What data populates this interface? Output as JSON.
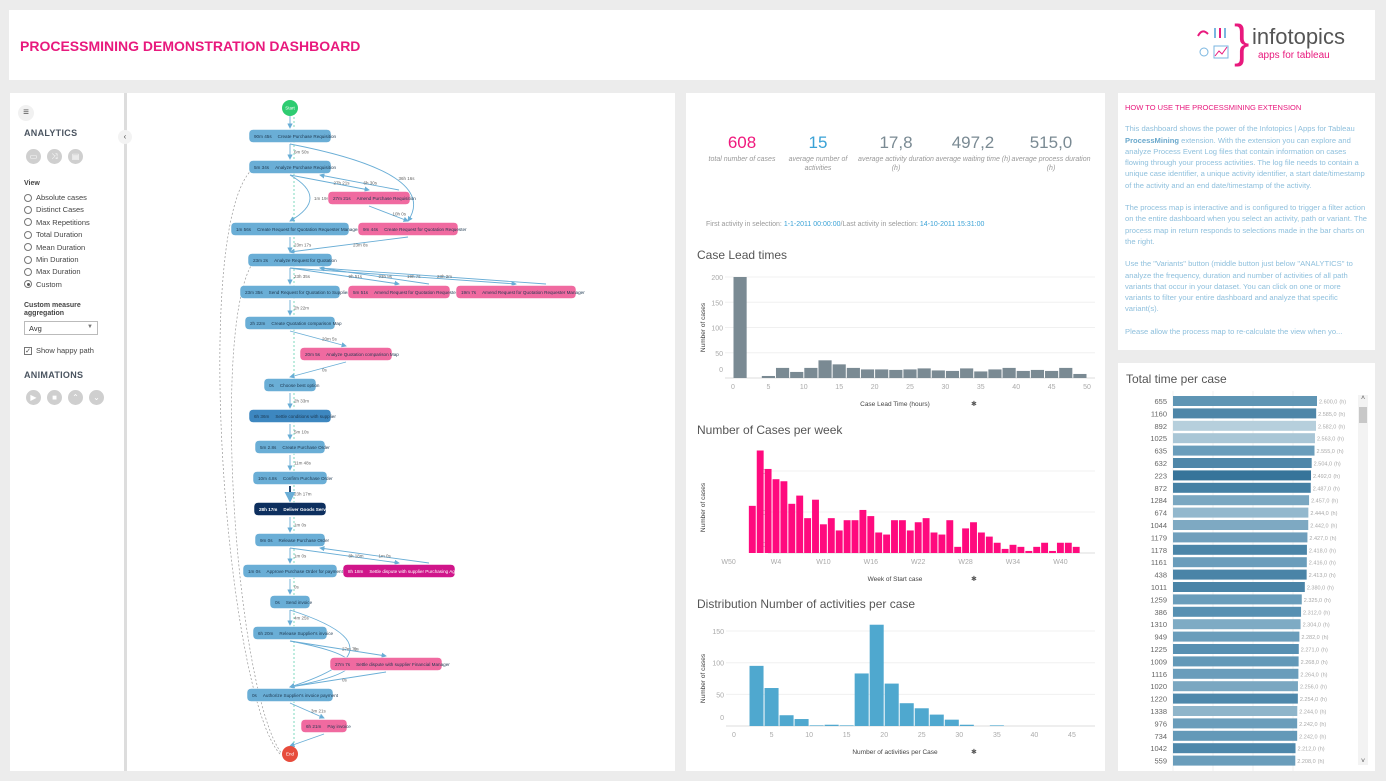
{
  "header": {
    "title": "PROCESSMINING DEMONSTRATION DASHBOARD",
    "logo_brand": "infotopics",
    "logo_sub": "apps for tableau"
  },
  "sidebar": {
    "menu_icon": "hamburger-icon",
    "collapse_icon": "chevron-left-icon",
    "analytics_title": "ANALYTICS",
    "analytics_buttons": [
      {
        "icon": "frequency-icon"
      },
      {
        "icon": "variants-icon"
      },
      {
        "icon": "report-icon"
      }
    ],
    "view_label": "View",
    "view_options": [
      {
        "label": "Absolute cases",
        "selected": false
      },
      {
        "label": "Distinct Cases",
        "selected": false
      },
      {
        "label": "Max Repetitions",
        "selected": false
      },
      {
        "label": "Total Duration",
        "selected": false
      },
      {
        "label": "Mean Duration",
        "selected": false
      },
      {
        "label": "Min Duration",
        "selected": false
      },
      {
        "label": "Max Duration",
        "selected": false
      },
      {
        "label": "Custom",
        "selected": true
      }
    ],
    "aggregation_label": "Custom measure aggregation",
    "aggregation_value": "Avg",
    "happy_path_label": "Show happy path",
    "happy_path_checked": true,
    "animations_title": "ANIMATIONS",
    "animation_buttons": [
      {
        "icon": "play-icon"
      },
      {
        "icon": "stop-icon"
      },
      {
        "icon": "step-up-icon"
      },
      {
        "icon": "step-down-icon"
      }
    ]
  },
  "process_map": {
    "colors": {
      "normal": "#6aaed6",
      "selected": "#3d87c0",
      "highlight": "#0d2f5e",
      "rework": "#f06aa0",
      "dispute": "#d0158a",
      "start": "#2ecc71",
      "end": "#e74c3c"
    },
    "start_label": "Start",
    "end_label": "End",
    "nodes": [
      {
        "duration": "90m 45s",
        "name": "Create Purchase Requisition",
        "type": "normal"
      },
      {
        "duration": "5m 34s",
        "name": "Analyze Purchase Requisition",
        "type": "normal"
      },
      {
        "duration": "27m 21s",
        "name": "Amend Purchase Requisition",
        "type": "rework"
      },
      {
        "duration": "1m 56s",
        "name": "Create Request for Quotation Requester Manager",
        "type": "normal"
      },
      {
        "duration": "9m 44s",
        "name": "Create Request for Quotation Requester",
        "type": "rework"
      },
      {
        "duration": "23m 2s",
        "name": "Analyze Request for Quotation",
        "type": "normal"
      },
      {
        "duration": "23m 35s",
        "name": "Send Request for Quotation to Supplier",
        "type": "normal"
      },
      {
        "duration": "5m 51s",
        "name": "Amend Request for Quotation Requester",
        "type": "rework"
      },
      {
        "duration": "19m 7s",
        "name": "Amend Request for Quotation Requester Manager",
        "type": "rework"
      },
      {
        "duration": "2h 22m",
        "name": "Create Quotation comparison Map",
        "type": "normal"
      },
      {
        "duration": "20m 5s",
        "name": "Analyze Quotation comparison Map",
        "type": "rework"
      },
      {
        "duration": "0s",
        "name": "Choose best option",
        "type": "normal"
      },
      {
        "duration": "6h 36m",
        "name": "Settle conditions with supplier",
        "type": "selected"
      },
      {
        "duration": "5m 2.8s",
        "name": "Create Purchase Order",
        "type": "normal"
      },
      {
        "duration": "10m 4.8s",
        "name": "Confirm Purchase Order",
        "type": "normal"
      },
      {
        "duration": "28h 17m",
        "name": "Deliver Goods Services",
        "type": "highlight"
      },
      {
        "duration": "9m 0s",
        "name": "Release Purchase Order",
        "type": "normal"
      },
      {
        "duration": "1m 0s",
        "name": "Approve Purchase Order for payment",
        "type": "normal"
      },
      {
        "duration": "8h 18m",
        "name": "Settle dispute with supplier Purchasing Agent",
        "type": "dispute"
      },
      {
        "duration": "0s",
        "name": "Send invoice",
        "type": "normal"
      },
      {
        "duration": "6h 20m",
        "name": "Release Supplier's invoice",
        "type": "normal"
      },
      {
        "duration": "27m 7s",
        "name": "Settle dispute with supplier Financial Manager",
        "type": "rework"
      },
      {
        "duration": "0s",
        "name": "Authorize Supplier's invoice payment",
        "type": "normal"
      },
      {
        "duration": "6h 21m",
        "name": "Pay invoice",
        "type": "rework"
      }
    ],
    "edges": [
      {
        "from": "start",
        "to": 0,
        "label": ""
      },
      {
        "from": 0,
        "to": 1,
        "label": "6m 50s"
      },
      {
        "from": 0,
        "to": 4,
        "label": "36h 16s"
      },
      {
        "from": 1,
        "to": 2,
        "label": "27h 21s"
      },
      {
        "from": 2,
        "to": 1,
        "label": "6h 30s"
      },
      {
        "from": 1,
        "to": 3,
        "label": "1m 19s"
      },
      {
        "from": 2,
        "to": 4,
        "label": "10h 0s"
      },
      {
        "from": 3,
        "to": 5,
        "label": "23m 17s"
      },
      {
        "from": 4,
        "to": 5,
        "label": "23m 8s"
      },
      {
        "from": 5,
        "to": 6,
        "label": "23h 35s"
      },
      {
        "from": 5,
        "to": 7,
        "label": "9h 51s"
      },
      {
        "from": 7,
        "to": 5,
        "label": "23h 9s"
      },
      {
        "from": 5,
        "to": 8,
        "label": "19h 7s"
      },
      {
        "from": 8,
        "to": 5,
        "label": "23h 2m"
      },
      {
        "from": 6,
        "to": 9,
        "label": "2h 22m"
      },
      {
        "from": 9,
        "to": 10,
        "label": "20m 5s"
      },
      {
        "from": 10,
        "to": 11,
        "label": "0s"
      },
      {
        "from": 11,
        "to": 12,
        "label": "2h 33m"
      },
      {
        "from": 12,
        "to": 13,
        "label": "5m 10s"
      },
      {
        "from": 13,
        "to": 14,
        "label": "11m 48s"
      },
      {
        "from": 14,
        "to": 15,
        "label": "23h 17m"
      },
      {
        "from": 15,
        "to": 16,
        "label": "1m 0s"
      },
      {
        "from": 16,
        "to": 17,
        "label": "1m 0s"
      },
      {
        "from": 16,
        "to": 18,
        "label": "8h 18m"
      },
      {
        "from": 18,
        "to": 16,
        "label": "1m 0s"
      },
      {
        "from": 17,
        "to": 19,
        "label": "0s"
      },
      {
        "from": 19,
        "to": 20,
        "label": "4m 25s"
      },
      {
        "from": 19,
        "to": 22,
        "label": "0s"
      },
      {
        "from": 20,
        "to": 21,
        "label": "27m 7s"
      },
      {
        "from": 20,
        "to": 22,
        "label": "0s"
      },
      {
        "from": 21,
        "to": 22,
        "label": "0s"
      },
      {
        "from": 22,
        "to": 23,
        "label": "3m 21s"
      },
      {
        "from": 23,
        "to": "end",
        "label": ""
      }
    ]
  },
  "kpis": [
    {
      "value": "608",
      "label": "total number of cases",
      "color": "#f0197d"
    },
    {
      "value": "15",
      "label": "average number of activities",
      "color": "#3aa2d6"
    },
    {
      "value": "17,8",
      "label": "average activity duration (h)",
      "color": "#7a8a93"
    },
    {
      "value": "497,2",
      "label": "average waiting time (h)",
      "color": "#7a8a93"
    },
    {
      "value": "515,0",
      "label": "average process duration (h)",
      "color": "#7a8a93"
    }
  ],
  "selection": {
    "first_label": "First activity in selection:",
    "first_value": "1-1-2011 00:00:00",
    "separator": "/",
    "last_label": "Last activity in selection:",
    "last_value": "14-10-2011 15:31:00"
  },
  "chart_data": [
    {
      "type": "bar",
      "title": "Case Lead times",
      "xlabel": "Case Lead Time (hours)",
      "ylabel": "Number of cases",
      "color": "#7a8a93",
      "bin_width": 2,
      "bins": [
        0,
        4,
        6,
        8,
        10,
        12,
        14,
        16,
        18,
        20,
        22,
        24,
        26,
        28,
        30,
        32,
        34,
        36,
        38,
        40,
        42,
        44,
        46,
        48
      ],
      "values": [
        200,
        4,
        20,
        12,
        20,
        35,
        27,
        20,
        17,
        17,
        16,
        17,
        19,
        15,
        14,
        19,
        13,
        17,
        20,
        14,
        16,
        14,
        20,
        8
      ],
      "xticks": [
        0,
        5,
        10,
        15,
        20,
        25,
        30,
        35,
        40,
        45,
        50
      ],
      "yticks": [
        0,
        50,
        100,
        150,
        200
      ],
      "xlim": [
        0,
        51
      ],
      "ylim": [
        0,
        210
      ],
      "grid": true
    },
    {
      "type": "bar",
      "title": "Number of Cases per week",
      "xlabel": "Week of Start case",
      "ylabel": "Number of cases",
      "color": "#ff0a7e",
      "categories": [
        "W1",
        "W2",
        "W3",
        "W4",
        "W5",
        "W6",
        "W7",
        "W8",
        "W9",
        "W10",
        "W11",
        "W12",
        "W13",
        "W14",
        "W15",
        "W16",
        "W17",
        "W18",
        "W19",
        "W20",
        "W21",
        "W22",
        "W23",
        "W24",
        "W25",
        "W26",
        "W27",
        "W28",
        "W29",
        "W30",
        "W31",
        "W32",
        "W33",
        "W34",
        "W35",
        "W36",
        "W37",
        "W38",
        "W39",
        "W40",
        "W41",
        "W42"
      ],
      "values": [
        23,
        50,
        41,
        36,
        35,
        24,
        28,
        17,
        26,
        14,
        17,
        11,
        16,
        16,
        21,
        18,
        10,
        9,
        16,
        16,
        11,
        15,
        17,
        10,
        9,
        16,
        3,
        12,
        15,
        10,
        8,
        5,
        2,
        4,
        3,
        1,
        3,
        5,
        1,
        5,
        5,
        3
      ],
      "xticks": [
        "W50",
        "W4",
        "W10",
        "W16",
        "W22",
        "W28",
        "W34",
        "W40"
      ],
      "yticks": [
        0,
        20,
        40
      ],
      "ylim": [
        0,
        52
      ],
      "grid": true
    },
    {
      "type": "bar",
      "title": "Distribution Number of activities per case",
      "xlabel": "Number of activities per Case",
      "ylabel": "Number of cases",
      "color": "#4fa8cf",
      "bin_width": 2,
      "bins": [
        2,
        4,
        6,
        8,
        10,
        12,
        14,
        16,
        18,
        20,
        22,
        24,
        26,
        28,
        30,
        34
      ],
      "values": [
        95,
        60,
        17,
        11,
        1,
        2,
        1,
        83,
        160,
        67,
        36,
        28,
        18,
        10,
        2,
        1
      ],
      "xticks": [
        0,
        5,
        10,
        15,
        20,
        25,
        30,
        35,
        40,
        45
      ],
      "yticks": [
        0,
        50,
        100,
        150
      ],
      "xlim": [
        0,
        47
      ],
      "ylim": [
        0,
        165
      ],
      "grid": true
    },
    {
      "type": "bar",
      "orientation": "horizontal",
      "title": "Total time per case",
      "unit": "(h)",
      "categories": [
        "655",
        "1160",
        "892",
        "1025",
        "635",
        "632",
        "223",
        "872",
        "1284",
        "674",
        "1044",
        "1179",
        "1178",
        "1161",
        "438",
        "1011",
        "1259",
        "386",
        "1310",
        "949",
        "1225",
        "1009",
        "1116",
        "1020",
        "1220",
        "1338",
        "976",
        "734",
        "1042",
        "559"
      ],
      "values": [
        2600,
        2585,
        2582,
        2563,
        2555,
        2504,
        2492,
        2487,
        2457,
        2444,
        2442,
        2427,
        2418,
        2416,
        2413,
        2380,
        2325,
        2312,
        2304,
        2282,
        2271,
        2268,
        2264,
        2256,
        2254,
        2244,
        2242,
        2242,
        2212,
        2208
      ],
      "value_labels": [
        "2.600,0",
        "2.585,0",
        "2.582,0",
        "2.563,0",
        "2.555,0",
        "2.504,0",
        "2.492,0",
        "2.487,0",
        "2.457,0",
        "2.444,0",
        "2.442,0",
        "2.427,0",
        "2.418,0",
        "2.416,0",
        "2.413,0",
        "2.380,0",
        "2.325,0",
        "2.312,0",
        "2.304,0",
        "2.282,0",
        "2.271,0",
        "2.268,0",
        "2.264,0",
        "2.256,0",
        "2.254,0",
        "2.244,0",
        "2.242,0",
        "2.242,0",
        "2.212,0",
        "2.208,0"
      ],
      "bar_colors": [
        "#5f95b4",
        "#4e86a8",
        "#b6cfdc",
        "#a9c6d6",
        "#6a9dbb",
        "#4f87a9",
        "#37749a",
        "#4480a4",
        "#7aa7c1",
        "#93b8cd",
        "#7ea9c2",
        "#709fbc",
        "#4b85a8",
        "#6a9dbb",
        "#4a84a7",
        "#4a84a7",
        "#6a9dbb",
        "#5790b2",
        "#7eabc4",
        "#6a9dbb",
        "#5790b2",
        "#6399b8",
        "#6a9dbb",
        "#7aa7c1",
        "#4e88ab",
        "#8fb5ca",
        "#6a9dbb",
        "#6399b8",
        "#4e88ab",
        "#6a9dbb"
      ],
      "xlim": [
        0,
        2600
      ]
    }
  ],
  "help": {
    "title": "HOW TO USE THE PROCESSMINING EXTENSION",
    "p1_a": "This dashboard shows the power of the Infotopics | Apps for Tableau ",
    "p1_b": "ProcessMining",
    "p1_c": " extension. With the extension you can explore and analyze Process Event Log files that contain information on cases flowing through your process activities. The log file needs to contain a unique case identifier, a unique activity identifier, a start date/timestamp of the activity and an end date/timestamp of the activity.",
    "p2": "The process map is interactive and is configured to trigger a filter action on the entire dashboard when you select an activity, path or variant. The process map in return responds to selections made in the bar charts on the right.",
    "p3": "Use the \"Variants\" button (middle button just below \"ANALYTICS\" to analyze the frequency, duration and number of activities of all path variants that occur in your dataset. You can click on one or more variants to filter your entire dashboard and analyze that specific variant(s).",
    "p4": "Please allow the process map to re-calculate the view when yo..."
  }
}
